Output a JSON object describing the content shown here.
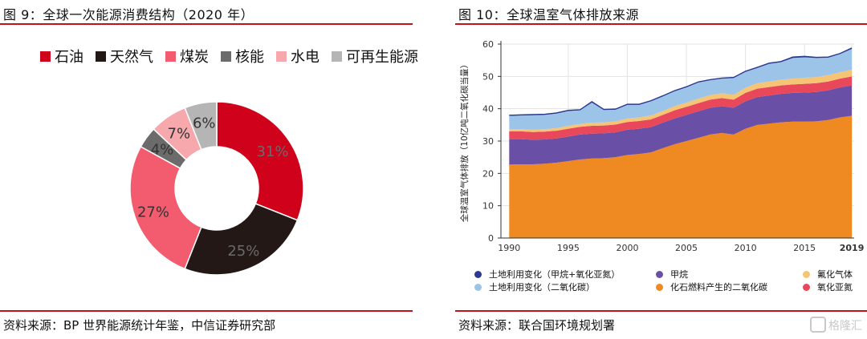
{
  "left": {
    "title": "图 9：全球一次能源消费结构（2020 年）",
    "source": "资料来源：BP 世界能源统计年鉴，中信证券研究部",
    "chart_data": {
      "type": "pie",
      "donut": true,
      "title": "全球一次能源消费结构（2020 年）",
      "legend_position": "top",
      "categories": [
        "石油",
        "天然气",
        "煤炭",
        "核能",
        "水电",
        "可再生能源"
      ],
      "values": [
        31,
        25,
        27,
        4,
        7,
        6
      ],
      "labels": [
        "31%",
        "25%",
        "27%",
        "4%",
        "7%",
        "6%"
      ],
      "colors": [
        "#d0021b",
        "#231815",
        "#f25c6e",
        "#6b6b6b",
        "#f7a8ad",
        "#b5b5b5"
      ]
    }
  },
  "right": {
    "title": "图 10：全球温室气体排放来源",
    "source": "资料来源：联合国环境规划署",
    "watermark": "格隆汇",
    "chart_data": {
      "type": "area",
      "stacked": true,
      "title": "全球温室气体排放来源",
      "ylabel": "全球温室气体排放（10亿吨二氧化碳当量）",
      "xlabel": "",
      "ylim": [
        0,
        60
      ],
      "yticks": [
        0,
        10,
        20,
        30,
        40,
        50,
        60
      ],
      "xticks": [
        "1990",
        "1995",
        "2000",
        "2005",
        "2010",
        "2015",
        "2019"
      ],
      "grid": true,
      "legend_position": "bottom",
      "x": [
        1990,
        1991,
        1992,
        1993,
        1994,
        1995,
        1996,
        1997,
        1998,
        1999,
        2000,
        2001,
        2002,
        2003,
        2004,
        2005,
        2006,
        2007,
        2008,
        2009,
        2010,
        2011,
        2012,
        2013,
        2014,
        2015,
        2016,
        2017,
        2018,
        2019
      ],
      "series": [
        {
          "name": "化石燃料产生的二氧化碳",
          "color": "#ef8a22",
          "values": [
            22.7,
            22.8,
            22.8,
            23.0,
            23.3,
            23.8,
            24.3,
            24.6,
            24.7,
            25.0,
            25.7,
            26.0,
            26.5,
            27.8,
            29.0,
            30.0,
            31.0,
            32.0,
            32.5,
            32.0,
            33.8,
            35.0,
            35.4,
            35.8,
            36.0,
            36.0,
            36.1,
            36.5,
            37.3,
            37.8
          ]
        },
        {
          "name": "甲烷",
          "color": "#6a4fa6",
          "values": [
            7.9,
            7.8,
            7.6,
            7.5,
            7.5,
            7.6,
            7.7,
            7.7,
            7.7,
            7.7,
            7.8,
            7.8,
            7.8,
            7.9,
            8.0,
            8.1,
            8.2,
            8.3,
            8.3,
            8.3,
            8.5,
            8.6,
            8.7,
            8.8,
            8.9,
            9.0,
            9.1,
            9.2,
            9.3,
            9.4
          ]
        },
        {
          "name": "氧化亚氮",
          "color": "#e8485a",
          "values": [
            2.4,
            2.4,
            2.4,
            2.4,
            2.4,
            2.4,
            2.4,
            2.4,
            2.4,
            2.4,
            2.4,
            2.4,
            2.4,
            2.4,
            2.5,
            2.5,
            2.5,
            2.5,
            2.5,
            2.5,
            2.6,
            2.6,
            2.6,
            2.6,
            2.6,
            2.7,
            2.7,
            2.7,
            2.7,
            2.8
          ]
        },
        {
          "name": "氟化气体",
          "color": "#f5c474",
          "values": [
            0.7,
            0.7,
            0.7,
            0.8,
            0.8,
            0.9,
            0.9,
            1.0,
            1.0,
            1.0,
            1.1,
            1.1,
            1.2,
            1.2,
            1.3,
            1.3,
            1.4,
            1.4,
            1.5,
            1.5,
            1.6,
            1.7,
            1.7,
            1.8,
            1.8,
            1.9,
            1.9,
            2.0,
            2.0,
            2.1
          ]
        },
        {
          "name": "土地利用变化（二氧化碳）",
          "color": "#9cc3e8",
          "values": [
            4.1,
            4.2,
            4.5,
            4.4,
            4.5,
            4.6,
            4.2,
            6.2,
            3.8,
            3.6,
            4.2,
            3.9,
            4.4,
            4.5,
            4.6,
            4.7,
            5.0,
            4.6,
            4.5,
            5.2,
            4.9,
            4.7,
            5.5,
            5.4,
            6.4,
            6.3,
            5.9,
            5.4,
            5.6,
            6.4
          ]
        },
        {
          "name": "土地利用变化（甲烷+氧化亚氮）",
          "color": "#2b3990",
          "values": [
            0.2,
            0.2,
            0.2,
            0.2,
            0.2,
            0.2,
            0.2,
            0.3,
            0.2,
            0.2,
            0.2,
            0.2,
            0.2,
            0.2,
            0.2,
            0.2,
            0.2,
            0.2,
            0.2,
            0.2,
            0.2,
            0.2,
            0.2,
            0.2,
            0.3,
            0.3,
            0.2,
            0.2,
            0.2,
            0.3
          ]
        }
      ],
      "legend": [
        "土地利用变化（甲烷+氧化亚氮）",
        "甲烷",
        "氟化气体",
        "土地利用变化（二氧化碳）",
        "化石燃料产生的二氧化碳",
        "氧化亚氮"
      ],
      "legend_colors": [
        "#2b3990",
        "#6a4fa6",
        "#f5c474",
        "#9cc3e8",
        "#ef8a22",
        "#e8485a"
      ]
    }
  }
}
